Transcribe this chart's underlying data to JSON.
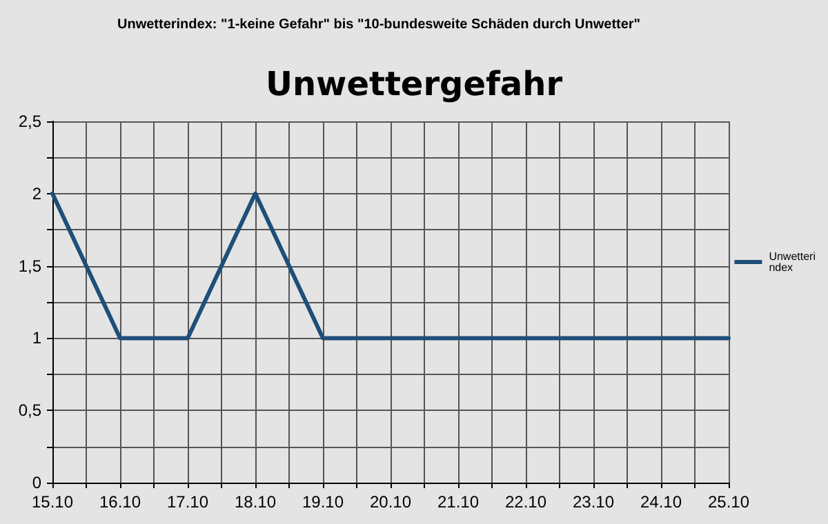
{
  "chart_data": {
    "type": "line",
    "title": "Unwettergefahr",
    "annotations": [
      "Unwetterindex: \"1-keine Gefahr\" bis \"10-bundesweite Schäden durch Unwetter\""
    ],
    "x": [
      "--10-15",
      "--10-16",
      "--10-17",
      "--10-18",
      "--10-19",
      "--10-20",
      "--10-21",
      "--10-22",
      "--10-23",
      "--10-24",
      "--10-25"
    ],
    "series": [
      {
        "name": "Unwetterindex",
        "color": "#1f4e79",
        "values": [
          2,
          1,
          1,
          2,
          1,
          1,
          1,
          1,
          1,
          1,
          1
        ]
      }
    ],
    "xlim": [
      "--10-15",
      "--10-25"
    ],
    "xticks": [
      {
        "value": "--10-15",
        "label": "15.10"
      },
      {
        "value": "--10-15T12:00",
        "label": null
      },
      {
        "value": "--10-16",
        "label": "16.10"
      },
      {
        "value": "--10-16T12:00",
        "label": null
      },
      {
        "value": "--10-17",
        "label": "17.10"
      },
      {
        "value": "--10-17T12:00",
        "label": null
      },
      {
        "value": "--10-18",
        "label": "18.10"
      },
      {
        "value": "--10-18T12:00",
        "label": null
      },
      {
        "value": "--10-19",
        "label": "19.10"
      },
      {
        "value": "--10-19T12:00",
        "label": null
      },
      {
        "value": "--10-20",
        "label": "20.10"
      },
      {
        "value": "--10-20T12:00",
        "label": null
      },
      {
        "value": "--10-21",
        "label": "21.10"
      },
      {
        "value": "--10-21T12:00",
        "label": null
      },
      {
        "value": "--10-22",
        "label": "22.10"
      },
      {
        "value": "--10-22T12:00",
        "label": null
      },
      {
        "value": "--10-23",
        "label": "23.10"
      },
      {
        "value": "--10-23T12:00",
        "label": null
      },
      {
        "value": "--10-24",
        "label": "24.10"
      },
      {
        "value": "--10-24T12:00",
        "label": null
      },
      {
        "value": "--10-25",
        "label": "25.10"
      }
    ],
    "ylim": [
      0,
      2.5
    ],
    "yticks": [
      0,
      {
        "value": 0.25,
        "label": null
      },
      {
        "value": 0.5,
        "label": "0,5"
      },
      {
        "value": 0.75,
        "label": null
      },
      1,
      {
        "value": 1.25,
        "label": null
      },
      {
        "value": 1.5,
        "label": "1,5"
      },
      {
        "value": 1.75,
        "label": null
      },
      2,
      {
        "value": 2.25,
        "label": null
      },
      {
        "value": 2.5,
        "label": "2,5"
      }
    ],
    "grid": true,
    "legend": "right",
    "marker": "none",
    "line_style": "solid"
  }
}
